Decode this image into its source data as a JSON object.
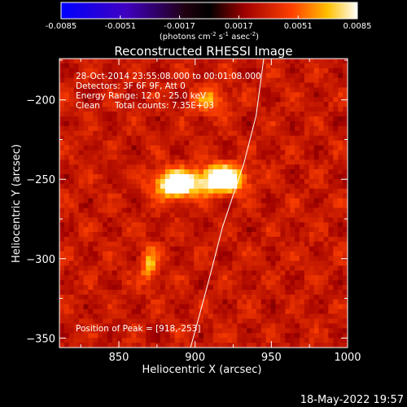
{
  "chart_data": {
    "type": "heatmap",
    "title": "Reconstructed RHESSI Image",
    "xlabel": "Heliocentric X (arcsec)",
    "ylabel": "Heliocentric Y (arcsec)",
    "xlim": [
      811,
      1000
    ],
    "ylim": [
      -356,
      -174
    ],
    "x_ticks": [
      "850",
      "900",
      "950",
      "1000"
    ],
    "x_tick_values": [
      850,
      900,
      950,
      1000
    ],
    "y_ticks": [
      "-200",
      "-250",
      "-300",
      "-350"
    ],
    "y_tick_values": [
      -200,
      -250,
      -300,
      -350
    ],
    "colorbar": {
      "range": [
        -0.0085,
        0.0085
      ],
      "ticks": [
        "-0.0085",
        "-0.0051",
        "-0.0017",
        "0.0017",
        "0.0051",
        "0.0085"
      ],
      "tick_values": [
        -0.0085,
        -0.0051,
        -0.0017,
        0.0017,
        0.0051,
        0.0085
      ],
      "unit_label": "(photons cm",
      "unit_exp1": "-2",
      "unit_mid": "s",
      "unit_exp2": "-1",
      "unit_end": "asec",
      "unit_exp3": "-2",
      "unit_close": ")"
    },
    "annotations": {
      "time_range": "28-Oct-2014 23:55:08.000 to 00:01:08.000",
      "detectors": "Detectors: 3F 6F 9F, Att 0",
      "energy_range": "Energy Range: 12.0 - 25.0 keV",
      "clean": "Clean",
      "total_counts": "Total counts: 7.35E+03",
      "peak": "Position of Peak = [918,-253]"
    },
    "peak": [
      918,
      -253
    ],
    "sources": [
      {
        "x": 888,
        "y": -253,
        "amplitude": 0.0078,
        "sigma_x": 10,
        "sigma_y": 6
      },
      {
        "x": 918,
        "y": -250,
        "amplitude": 0.0085,
        "sigma_x": 10,
        "sigma_y": 6
      },
      {
        "x": 870,
        "y": -304,
        "amplitude": 0.0035,
        "sigma_x": 4,
        "sigma_y": 8
      },
      {
        "x": 910,
        "y": -200,
        "amplitude": 0.003,
        "sigma_x": 8,
        "sigma_y": 6
      }
    ],
    "limb_curve": {
      "x": [
        945,
        940,
        932,
        925,
        918,
        910,
        903,
        897
      ],
      "y": [
        -174,
        -210,
        -240,
        -260,
        -280,
        -310,
        -335,
        -356
      ]
    }
  },
  "footer": {
    "date": "18-May-2022 19:57"
  }
}
